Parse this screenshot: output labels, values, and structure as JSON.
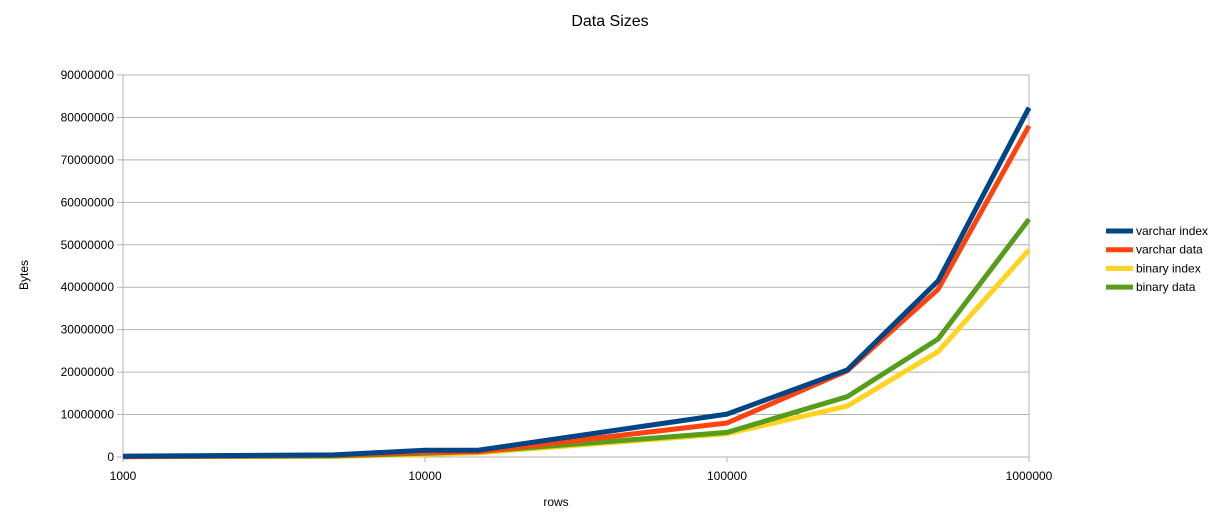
{
  "chart_data": {
    "type": "line",
    "title": "Data Sizes",
    "xlabel": "rows",
    "ylabel": "Bytes",
    "xscale": "log",
    "xlim": [
      1000,
      1000000
    ],
    "ylim": [
      0,
      90000000
    ],
    "x_ticks": [
      "1000",
      "10000",
      "100000",
      "1000000"
    ],
    "y_ticks": [
      "0",
      "10000000",
      "20000000",
      "30000000",
      "40000000",
      "50000000",
      "60000000",
      "70000000",
      "80000000",
      "90000000"
    ],
    "grid": true,
    "legend_position": "right",
    "x": [
      1000,
      5000,
      10000,
      15000,
      100000,
      250000,
      500000,
      1000000
    ],
    "series": [
      {
        "name": "varchar index",
        "color": "#004586",
        "values": [
          200000,
          500000,
          1600000,
          1600000,
          10100000,
          20500000,
          41500000,
          82300000
        ]
      },
      {
        "name": "varchar data",
        "color": "#ff420e",
        "values": [
          100000,
          400000,
          1100000,
          1200000,
          8000000,
          20300000,
          39500000,
          78000000
        ]
      },
      {
        "name": "binary index",
        "color": "#ffd320",
        "values": [
          50000,
          150000,
          600000,
          1000000,
          5500000,
          12000000,
          24800000,
          48800000
        ]
      },
      {
        "name": "binary data",
        "color": "#579d1c",
        "values": [
          80000,
          250000,
          900000,
          1300000,
          5800000,
          14200000,
          27800000,
          56000000
        ]
      }
    ]
  }
}
